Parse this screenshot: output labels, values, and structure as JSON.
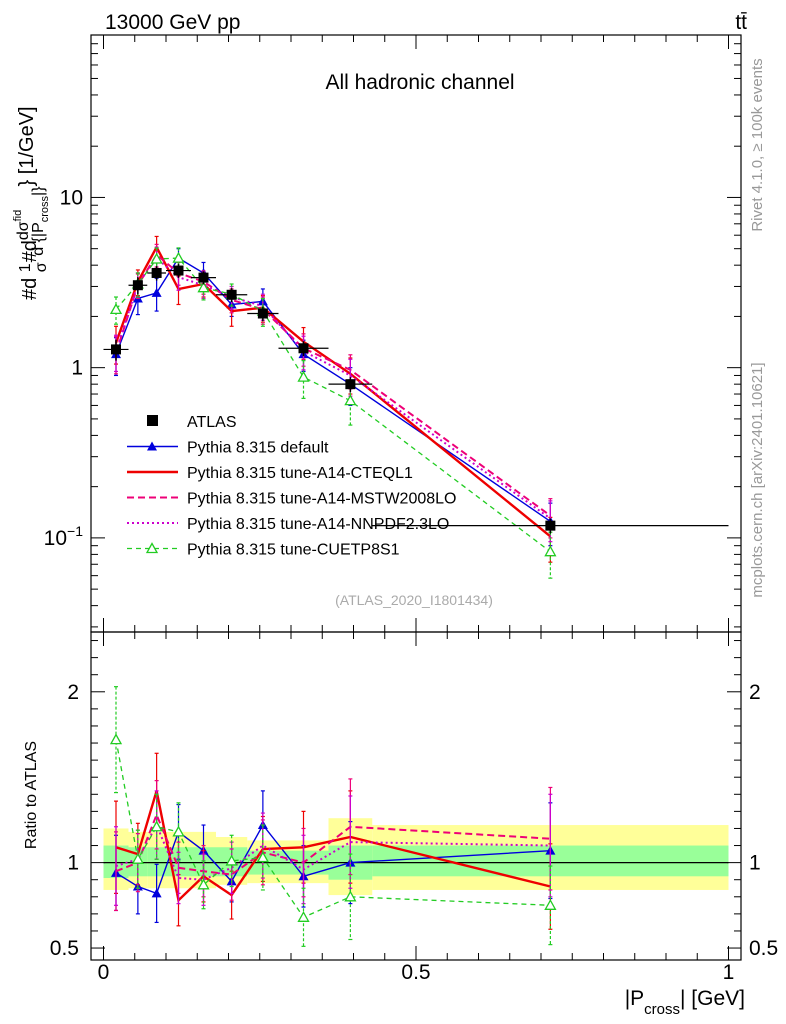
{
  "header": {
    "energy_label": "13000 GeV pp",
    "process_label": "tt̄"
  },
  "side_labels": {
    "rivet": "Rivet 4.1.0, ≥ 100k events",
    "mcplots": "mcplots.cern.ch [arXiv:2401.10621]"
  },
  "chart_data": [
    {
      "type": "line",
      "panel": "main",
      "title": "All hadronic channel",
      "analysis_tag": "(ATLAS_2020_I1801434)",
      "ylabel": {
        "prefix": "#d",
        "frac1_num": "1",
        "frac1_den": "σ",
        "mid": "#d",
        "frac2_num": "dσ",
        "frac2_num_sup": "fid",
        "frac2_den": "d {|P",
        "frac2_den_sub": "cross",
        "frac2_den_close": "|}",
        "units": "} [1/GeV]"
      },
      "yscale": "log",
      "ylim": [
        0.028,
        90
      ],
      "xlim": [
        -0.02,
        1.02
      ],
      "y_ticks": [
        {
          "value": 0.1,
          "base": "10",
          "exp": "−1"
        },
        {
          "value": 1,
          "base": "1",
          "exp": ""
        },
        {
          "value": 10,
          "base": "10",
          "exp": ""
        }
      ],
      "legend_position": "center-left",
      "x": [
        0.02,
        0.055,
        0.085,
        0.12,
        0.16,
        0.205,
        0.255,
        0.32,
        0.395,
        0.715
      ],
      "xerr": [
        0.02,
        0.015,
        0.015,
        0.02,
        0.02,
        0.025,
        0.025,
        0.04,
        0.035,
        0.285
      ],
      "series": [
        {
          "name": "ATLAS",
          "style": "data",
          "color": "#000000",
          "values": [
            1.28,
            3.05,
            3.6,
            3.72,
            3.38,
            2.68,
            2.08,
            1.3,
            0.8,
            0.118
          ],
          "errors": [
            0.18,
            0.35,
            0.35,
            0.35,
            0.3,
            0.25,
            0.2,
            0.13,
            0.08,
            0.012
          ]
        },
        {
          "name": "Pythia 8.315 default",
          "style": "solid-triangle",
          "color": "#0000dd",
          "values": [
            1.2,
            2.55,
            2.75,
            4.4,
            3.6,
            2.35,
            2.45,
            1.2,
            0.8,
            0.125
          ],
          "errors": [
            0.3,
            0.5,
            0.6,
            0.6,
            0.55,
            0.35,
            0.45,
            0.25,
            0.2,
            0.035
          ]
        },
        {
          "name": "Pythia 8.315 tune-A14-CTEQL1",
          "style": "solid",
          "color": "#ee0000",
          "values": [
            1.4,
            3.2,
            5.1,
            2.9,
            3.1,
            2.15,
            2.25,
            1.42,
            0.92,
            0.102
          ],
          "errors": [
            0.35,
            0.55,
            0.8,
            0.55,
            0.5,
            0.4,
            0.4,
            0.3,
            0.22,
            0.03
          ]
        },
        {
          "name": "Pythia 8.315 tune-A14-MSTW2008LO",
          "style": "dashed",
          "color": "#ee0077",
          "values": [
            1.22,
            3.05,
            4.6,
            3.6,
            3.2,
            2.5,
            2.2,
            1.3,
            0.97,
            0.135
          ],
          "errors": [
            0.3,
            0.5,
            0.7,
            0.55,
            0.5,
            0.4,
            0.4,
            0.28,
            0.22,
            0.035
          ]
        },
        {
          "name": "Pythia 8.315 tune-A14-NNPDF2.3LO",
          "style": "dotted",
          "color": "#cc00cc",
          "values": [
            1.25,
            3.1,
            4.4,
            3.4,
            3.05,
            2.6,
            2.3,
            1.25,
            0.9,
            0.13
          ],
          "errors": [
            0.3,
            0.5,
            0.7,
            0.55,
            0.5,
            0.4,
            0.4,
            0.28,
            0.22,
            0.035
          ]
        },
        {
          "name": "Pythia 8.315 tune-CUETP8S1",
          "style": "dashed-open-triangle",
          "color": "#22cc22",
          "values": [
            2.2,
            3.1,
            4.35,
            4.4,
            2.95,
            2.7,
            2.15,
            0.88,
            0.64,
            0.083
          ],
          "errors": [
            0.4,
            0.5,
            0.7,
            0.65,
            0.45,
            0.4,
            0.4,
            0.22,
            0.18,
            0.025
          ]
        }
      ]
    },
    {
      "type": "line",
      "panel": "ratio",
      "ylabel": "Ratio to ATLAS",
      "xlabel_main": "|P",
      "xlabel_sub": "cross",
      "xlabel_rest": "| [GeV]",
      "ylim": [
        0.43,
        2.35
      ],
      "xlim": [
        -0.02,
        1.02
      ],
      "y_ticks": [
        0.5,
        1,
        2
      ],
      "y_tick_labels": [
        "0.5",
        "1",
        "2"
      ],
      "x_ticks": [
        0,
        0.5,
        1
      ],
      "x_tick_labels": [
        "0",
        "0.5",
        "1"
      ],
      "bands": [
        {
          "x0": 0.0,
          "x1": 0.04,
          "inner": [
            0.91,
            1.1
          ],
          "outer": [
            0.84,
            1.2
          ]
        },
        {
          "x0": 0.04,
          "x1": 0.07,
          "inner": [
            0.92,
            1.09
          ],
          "outer": [
            0.85,
            1.18
          ]
        },
        {
          "x0": 0.07,
          "x1": 0.1,
          "inner": [
            0.92,
            1.09
          ],
          "outer": [
            0.85,
            1.18
          ]
        },
        {
          "x0": 0.1,
          "x1": 0.14,
          "inner": [
            0.92,
            1.09
          ],
          "outer": [
            0.85,
            1.18
          ]
        },
        {
          "x0": 0.14,
          "x1": 0.18,
          "inner": [
            0.92,
            1.09
          ],
          "outer": [
            0.85,
            1.18
          ]
        },
        {
          "x0": 0.18,
          "x1": 0.23,
          "inner": [
            0.92,
            1.09
          ],
          "outer": [
            0.87,
            1.15
          ]
        },
        {
          "x0": 0.23,
          "x1": 0.28,
          "inner": [
            0.93,
            1.07
          ],
          "outer": [
            0.88,
            1.13
          ]
        },
        {
          "x0": 0.28,
          "x1": 0.36,
          "inner": [
            0.93,
            1.07
          ],
          "outer": [
            0.88,
            1.13
          ]
        },
        {
          "x0": 0.36,
          "x1": 0.43,
          "inner": [
            0.9,
            1.1
          ],
          "outer": [
            0.81,
            1.26
          ]
        },
        {
          "x0": 0.43,
          "x1": 1.0,
          "inner": [
            0.92,
            1.1
          ],
          "outer": [
            0.84,
            1.22
          ]
        }
      ],
      "series": [
        {
          "name": "Pythia 8.315 default",
          "style": "solid-triangle",
          "color": "#0000dd",
          "values": [
            0.94,
            0.86,
            0.82,
            1.18,
            1.07,
            0.89,
            1.22,
            0.92,
            1.0,
            1.07
          ],
          "errors": [
            0.22,
            0.16,
            0.17,
            0.16,
            0.15,
            0.12,
            0.2,
            0.18,
            0.24,
            0.28
          ]
        },
        {
          "name": "Pythia 8.315 tune-A14-CTEQL1",
          "style": "solid",
          "color": "#ee0000",
          "values": [
            1.09,
            1.05,
            1.42,
            0.78,
            0.92,
            0.81,
            1.08,
            1.09,
            1.15,
            0.86
          ],
          "errors": [
            0.27,
            0.18,
            0.22,
            0.15,
            0.15,
            0.14,
            0.19,
            0.21,
            0.27,
            0.25
          ]
        },
        {
          "name": "Pythia 8.315 tune-A14-MSTW2008LO",
          "style": "dashed",
          "color": "#ee0077",
          "values": [
            0.95,
            1.0,
            1.28,
            0.97,
            0.95,
            0.93,
            1.06,
            1.0,
            1.21,
            1.14
          ],
          "errors": [
            0.23,
            0.17,
            0.2,
            0.15,
            0.15,
            0.15,
            0.19,
            0.2,
            0.28,
            0.3
          ]
        },
        {
          "name": "Pythia 8.315 tune-A14-NNPDF2.3LO",
          "style": "dotted",
          "color": "#cc00cc",
          "values": [
            0.98,
            1.02,
            1.22,
            0.91,
            0.9,
            0.97,
            1.1,
            0.96,
            1.12,
            1.1
          ],
          "errors": [
            0.23,
            0.17,
            0.2,
            0.15,
            0.15,
            0.15,
            0.19,
            0.2,
            0.27,
            0.3
          ]
        },
        {
          "name": "Pythia 8.315 tune-CUETP8S1",
          "style": "dashed-open-triangle",
          "color": "#22cc22",
          "values": [
            1.72,
            1.02,
            1.21,
            1.18,
            0.87,
            1.01,
            1.03,
            0.68,
            0.8,
            0.75
          ],
          "errors": [
            0.31,
            0.17,
            0.19,
            0.17,
            0.14,
            0.15,
            0.19,
            0.17,
            0.25,
            0.23
          ]
        }
      ]
    }
  ]
}
